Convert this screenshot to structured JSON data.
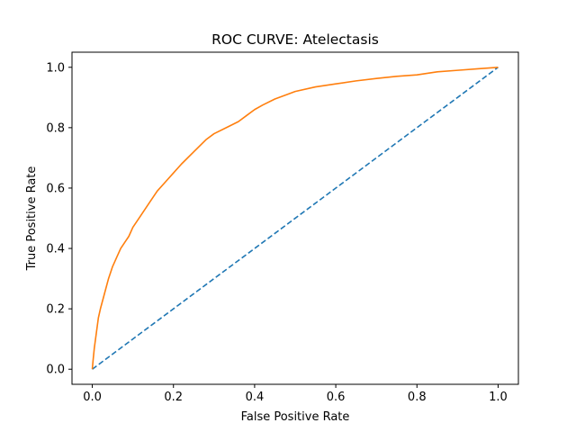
{
  "chart_data": {
    "type": "line",
    "title": "ROC CURVE: Atelectasis",
    "xlabel": "False Positive Rate",
    "ylabel": "True Positive Rate",
    "xlim": [
      -0.05,
      1.05
    ],
    "ylim": [
      -0.05,
      1.05
    ],
    "xticks": [
      0.0,
      0.2,
      0.4,
      0.6,
      0.8,
      1.0
    ],
    "xtick_labels": [
      "0.0",
      "0.2",
      "0.4",
      "0.6",
      "0.8",
      "1.0"
    ],
    "yticks": [
      0.0,
      0.2,
      0.4,
      0.6,
      0.8,
      1.0
    ],
    "ytick_labels": [
      "0.0",
      "0.2",
      "0.4",
      "0.6",
      "0.8",
      "1.0"
    ],
    "grid": false,
    "series": [
      {
        "style": "dashed",
        "color": "#1f77b4",
        "x": [
          0.0,
          1.0
        ],
        "y": [
          0.0,
          1.0
        ]
      },
      {
        "style": "solid",
        "color": "#ff7f0e",
        "x": [
          0.0,
          0.002,
          0.005,
          0.01,
          0.015,
          0.02,
          0.03,
          0.04,
          0.05,
          0.06,
          0.07,
          0.08,
          0.09,
          0.1,
          0.12,
          0.14,
          0.16,
          0.18,
          0.2,
          0.22,
          0.25,
          0.28,
          0.3,
          0.33,
          0.36,
          0.38,
          0.4,
          0.42,
          0.45,
          0.48,
          0.5,
          0.55,
          0.6,
          0.65,
          0.7,
          0.75,
          0.8,
          0.85,
          0.9,
          0.95,
          1.0
        ],
        "y": [
          0.0,
          0.03,
          0.07,
          0.12,
          0.17,
          0.2,
          0.25,
          0.3,
          0.34,
          0.37,
          0.4,
          0.42,
          0.44,
          0.47,
          0.51,
          0.55,
          0.59,
          0.62,
          0.65,
          0.68,
          0.72,
          0.76,
          0.78,
          0.8,
          0.82,
          0.84,
          0.86,
          0.875,
          0.895,
          0.91,
          0.92,
          0.935,
          0.945,
          0.955,
          0.963,
          0.97,
          0.975,
          0.985,
          0.99,
          0.995,
          1.0
        ]
      }
    ]
  }
}
